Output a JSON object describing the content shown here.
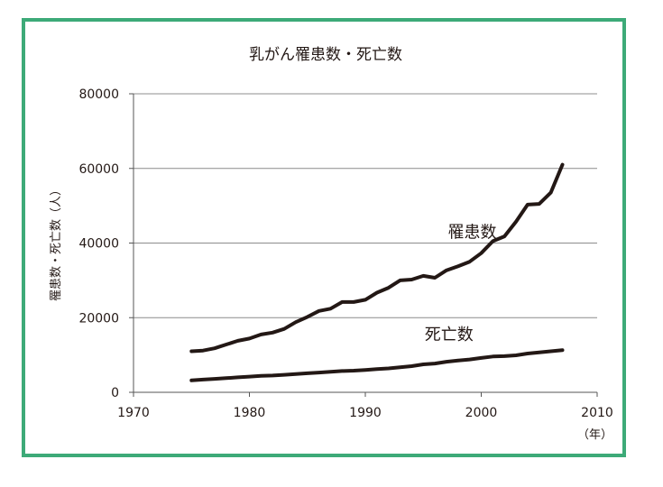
{
  "frame": {
    "border_color": "#3daa78"
  },
  "chart_data": {
    "type": "line",
    "title": "乳がん罹患数・死亡数",
    "ylabel": "罹患数・死亡数（人）",
    "xunit": "（年）",
    "xlim": [
      1970,
      2010
    ],
    "ylim": [
      0,
      80000
    ],
    "xticks": [
      1970,
      1980,
      1990,
      2000,
      2010
    ],
    "yticks": [
      0,
      20000,
      40000,
      60000,
      80000
    ],
    "grid": true,
    "line_color": "#231815",
    "x": [
      1975,
      1976,
      1977,
      1978,
      1979,
      1980,
      1981,
      1982,
      1983,
      1984,
      1985,
      1986,
      1987,
      1988,
      1989,
      1990,
      1991,
      1992,
      1993,
      1994,
      1995,
      1996,
      1997,
      1998,
      1999,
      2000,
      2001,
      2002,
      2003,
      2004,
      2005,
      2006,
      2007
    ],
    "series": [
      {
        "name": "罹患数",
        "values": [
          11000,
          11200,
          11800,
          12800,
          13800,
          14400,
          15500,
          16000,
          17000,
          18800,
          20200,
          21800,
          22400,
          24200,
          24200,
          24800,
          26700,
          28000,
          30000,
          30200,
          31200,
          30700,
          32700,
          33800,
          35000,
          37300,
          40500,
          41800,
          45700,
          50300,
          50500,
          53500,
          61000
        ]
      },
      {
        "name": "死亡数",
        "values": [
          3200,
          3400,
          3600,
          3800,
          4000,
          4200,
          4400,
          4500,
          4700,
          4900,
          5100,
          5300,
          5500,
          5700,
          5800,
          6000,
          6200,
          6400,
          6700,
          7000,
          7500,
          7700,
          8200,
          8500,
          8800,
          9200,
          9600,
          9700,
          9900,
          10400,
          10700,
          11000,
          11300
        ]
      }
    ]
  }
}
